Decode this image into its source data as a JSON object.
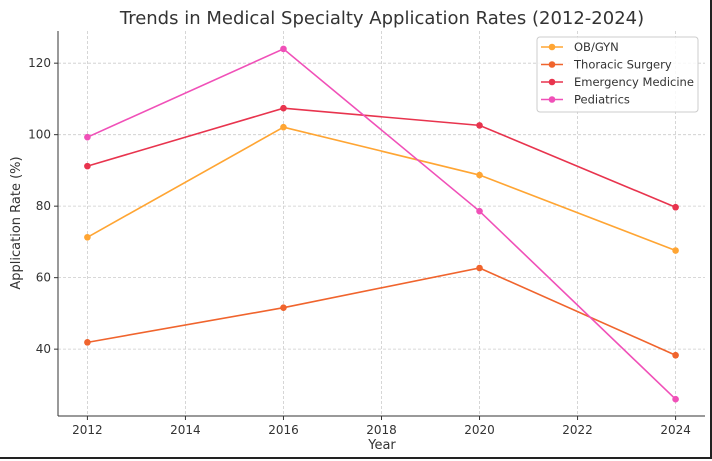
{
  "chart_data": {
    "type": "line",
    "title": "Trends in Medical Specialty Application Rates (2012-2024)",
    "xlabel": "Year",
    "ylabel": "Application Rate (%)",
    "x": [
      2012,
      2016,
      2020,
      2024
    ],
    "xlim": [
      2011.4,
      2024.6
    ],
    "ylim": [
      21.3,
      129
    ],
    "xticks": [
      2012,
      2014,
      2016,
      2018,
      2020,
      2022,
      2024
    ],
    "yticks": [
      40,
      60,
      80,
      100,
      120
    ],
    "grid": true,
    "legend_position": "top-right",
    "series": [
      {
        "name": "OB/GYN",
        "color": "#FFA533",
        "values": [
          71.3,
          102.1,
          88.7,
          67.6
        ]
      },
      {
        "name": "Thoracic Surgery",
        "color": "#F0642D",
        "values": [
          41.9,
          51.6,
          62.7,
          38.3
        ]
      },
      {
        "name": "Emergency Medicine",
        "color": "#E8344E",
        "values": [
          91.2,
          107.4,
          102.6,
          79.7
        ]
      },
      {
        "name": "Pediatrics",
        "color": "#F050B8",
        "values": [
          99.3,
          124.0,
          78.6,
          26.0
        ]
      }
    ]
  }
}
